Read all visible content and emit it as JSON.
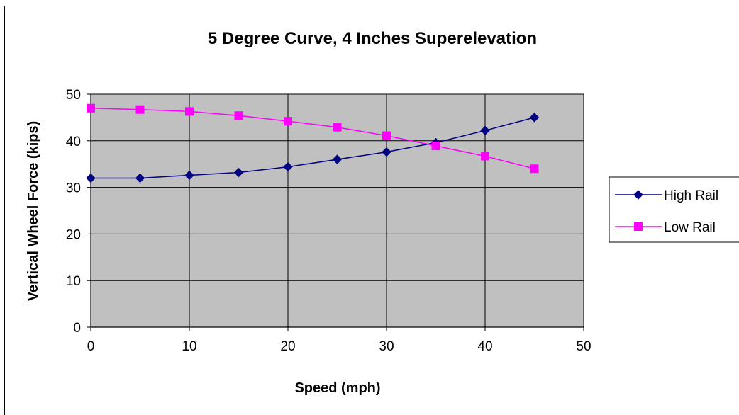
{
  "chart_data": {
    "type": "line",
    "title": "5 Degree Curve, 4 Inches Superelevation",
    "xlabel": "Speed (mph)",
    "ylabel": "Vertical Wheel Force (kips)",
    "xlim": [
      0,
      50
    ],
    "ylim": [
      0,
      50
    ],
    "x_ticks": [
      "0",
      "10",
      "20",
      "30",
      "40",
      "50"
    ],
    "y_ticks": [
      "0",
      "10",
      "20",
      "30",
      "40",
      "50"
    ],
    "grid": true,
    "legend_position": "right",
    "x": [
      0,
      5,
      10,
      15,
      20,
      25,
      30,
      35,
      40,
      45
    ],
    "series": [
      {
        "name": "High Rail",
        "color": "#000080",
        "marker": "diamond",
        "values": [
          32,
          32,
          32.6,
          33.2,
          34.4,
          36,
          37.6,
          39.6,
          42.2,
          45
        ]
      },
      {
        "name": "Low Rail",
        "color": "#ff00ff",
        "marker": "square",
        "values": [
          47,
          46.7,
          46.3,
          45.4,
          44.2,
          42.9,
          41.1,
          38.9,
          36.7,
          34
        ]
      }
    ],
    "plot_background": "#c0c0c0"
  }
}
